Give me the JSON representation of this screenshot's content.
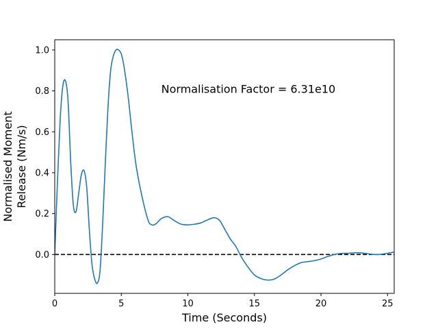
{
  "chart_data": {
    "type": "line",
    "title": "",
    "xlabel": "Time (Seconds)",
    "ylabel_lines": [
      "Normalised Moment",
      "Release (Nm/s)"
    ],
    "xlim": [
      0,
      25.5
    ],
    "ylim": [
      -0.19,
      1.05
    ],
    "xticks": [
      0,
      5,
      10,
      15,
      20,
      25
    ],
    "yticks": [
      0.0,
      0.2,
      0.4,
      0.6,
      0.8,
      1.0
    ],
    "ytick_labels": [
      "0.0",
      "0.2",
      "0.4",
      "0.6",
      "0.8",
      "1.0"
    ],
    "grid": false,
    "legend": "none",
    "annotation": {
      "text": "Normalisation Factor = 6.31e10",
      "x": 8.0,
      "y": 0.81
    },
    "reference_line": {
      "y": 0.0,
      "style": "dashed",
      "color": "#000000"
    },
    "series": [
      {
        "color": "#1f77b4",
        "x": [
          0,
          0.2,
          0.4,
          0.6,
          0.8,
          1.0,
          1.2,
          1.4,
          1.6,
          1.8,
          2.0,
          2.2,
          2.4,
          2.6,
          2.8,
          3.0,
          3.2,
          3.4,
          3.6,
          3.8,
          4.0,
          4.2,
          4.4,
          4.6,
          4.8,
          5.0,
          5.2,
          5.5,
          5.8,
          6.1,
          6.5,
          7.0,
          7.3,
          7.6,
          8.0,
          8.5,
          9.0,
          9.5,
          10.0,
          10.5,
          11.0,
          11.5,
          12.0,
          12.4,
          12.8,
          13.2,
          13.6,
          14.0,
          14.5,
          15.0,
          15.5,
          16.0,
          16.5,
          17.0,
          17.5,
          18.0,
          18.5,
          19.0,
          19.5,
          20.0,
          20.5,
          21.0,
          21.5,
          22.0,
          22.5,
          23.0,
          23.5,
          24.0,
          24.5,
          25.0,
          25.5
        ],
        "y": [
          0.0,
          0.35,
          0.65,
          0.82,
          0.85,
          0.75,
          0.45,
          0.24,
          0.21,
          0.3,
          0.39,
          0.41,
          0.33,
          0.12,
          -0.05,
          -0.12,
          -0.14,
          -0.08,
          0.15,
          0.45,
          0.72,
          0.9,
          0.97,
          1.0,
          1.0,
          0.98,
          0.92,
          0.78,
          0.6,
          0.44,
          0.3,
          0.17,
          0.145,
          0.15,
          0.175,
          0.185,
          0.165,
          0.148,
          0.145,
          0.148,
          0.155,
          0.17,
          0.18,
          0.165,
          0.12,
          0.075,
          0.04,
          -0.01,
          -0.06,
          -0.1,
          -0.118,
          -0.125,
          -0.12,
          -0.1,
          -0.075,
          -0.055,
          -0.04,
          -0.035,
          -0.03,
          -0.022,
          -0.01,
          0.0,
          0.005,
          0.006,
          0.008,
          0.008,
          0.004,
          0.0,
          0.001,
          0.006,
          0.012
        ]
      }
    ]
  }
}
